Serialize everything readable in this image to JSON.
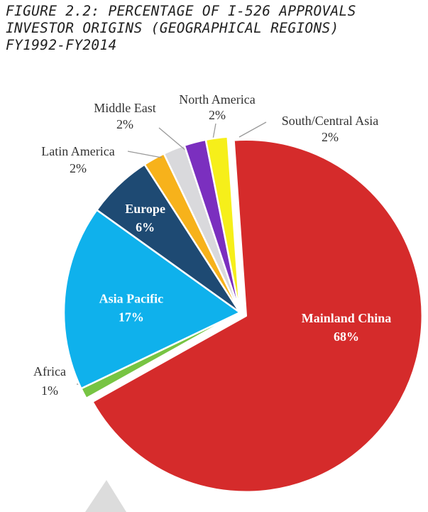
{
  "figure": {
    "title_lines": [
      "FIGURE 2.2: PERCENTAGE OF I-526 APPROVALS",
      "INVESTOR ORIGINS (GEOGRAPHICAL REGIONS)",
      "FY1992-FY2014"
    ]
  },
  "chart_data": {
    "type": "pie",
    "title": "FIGURE 2.2: PERCENTAGE OF I-526 APPROVALS INVESTOR ORIGINS (GEOGRAPHICAL REGIONS) FY1992-FY2014",
    "unit": "%",
    "slices": [
      {
        "name": "Mainland China",
        "value": 68,
        "label": "68%",
        "color": "#d52b2b",
        "exploded": true
      },
      {
        "name": "Africa",
        "value": 1,
        "label": "1%",
        "color": "#77c443"
      },
      {
        "name": "Asia Pacific",
        "value": 17,
        "label": "17%",
        "color": "#0fb1ec"
      },
      {
        "name": "Europe",
        "value": 6,
        "label": "6%",
        "color": "#1e4a73"
      },
      {
        "name": "Latin America",
        "value": 2,
        "label": "2%",
        "color": "#f7b21b"
      },
      {
        "name": "Middle East",
        "value": 2,
        "label": "2%",
        "color": "#d9d9dc"
      },
      {
        "name": "North America",
        "value": 2,
        "label": "2%",
        "color": "#7b2fbf"
      },
      {
        "name": "South/Central Asia",
        "value": 2,
        "label": "2%",
        "color": "#f6ef1a"
      }
    ]
  }
}
